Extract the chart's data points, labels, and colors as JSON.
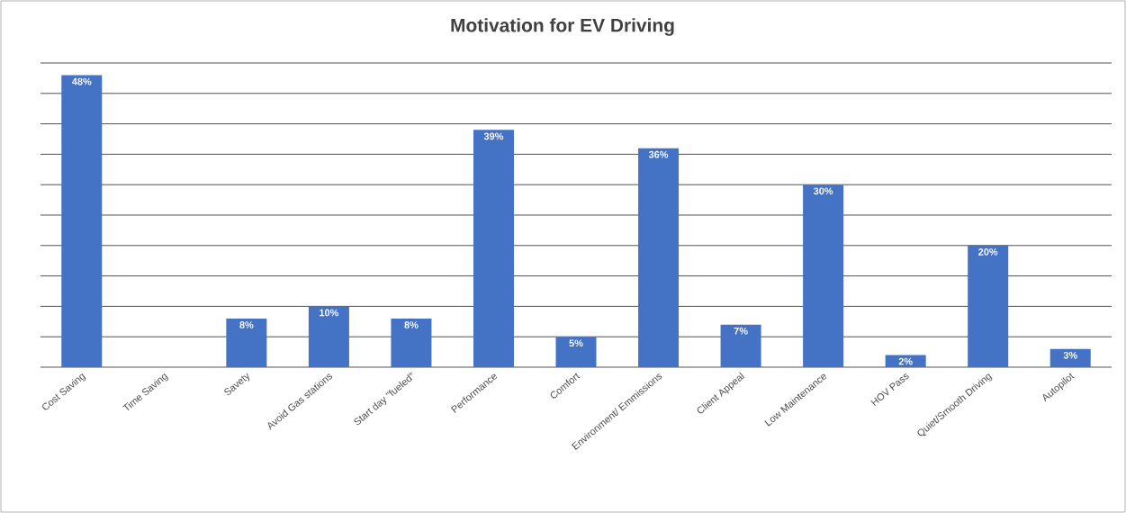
{
  "chart_data": {
    "type": "bar",
    "title": "Motivation for EV Driving",
    "categories": [
      "Cost Saving",
      "Time Saving",
      "Savety",
      "Avoid Gas stations",
      "Start day \"fueled\"",
      "Performance",
      "Comfort",
      "Environment/ Emmissions",
      "Client Appeal",
      "Low Maintenance",
      "HOV Pass",
      "Quiet/Smooth Driving",
      "Autopilot"
    ],
    "values": [
      48,
      0,
      8,
      10,
      8,
      39,
      5,
      36,
      7,
      30,
      2,
      20,
      3
    ],
    "value_labels": [
      "48%",
      null,
      "8%",
      "10%",
      "8%",
      "39%",
      "5%",
      "36%",
      "7%",
      "30%",
      "2%",
      "20%",
      "3%"
    ],
    "color": "#4472c4",
    "ylim": [
      0,
      50
    ],
    "yticks": [
      {
        "value": 0,
        "label": null
      },
      {
        "value": 5,
        "label": null
      },
      {
        "value": 10,
        "label": null
      },
      {
        "value": 15,
        "label": null
      },
      {
        "value": 20,
        "label": null
      },
      {
        "value": 25,
        "label": null
      },
      {
        "value": 30,
        "label": null
      },
      {
        "value": 35,
        "label": null
      },
      {
        "value": 40,
        "label": null
      },
      {
        "value": 45,
        "label": null
      },
      {
        "value": 50,
        "label": null
      }
    ],
    "grid": "y",
    "tick_labels": "x"
  }
}
